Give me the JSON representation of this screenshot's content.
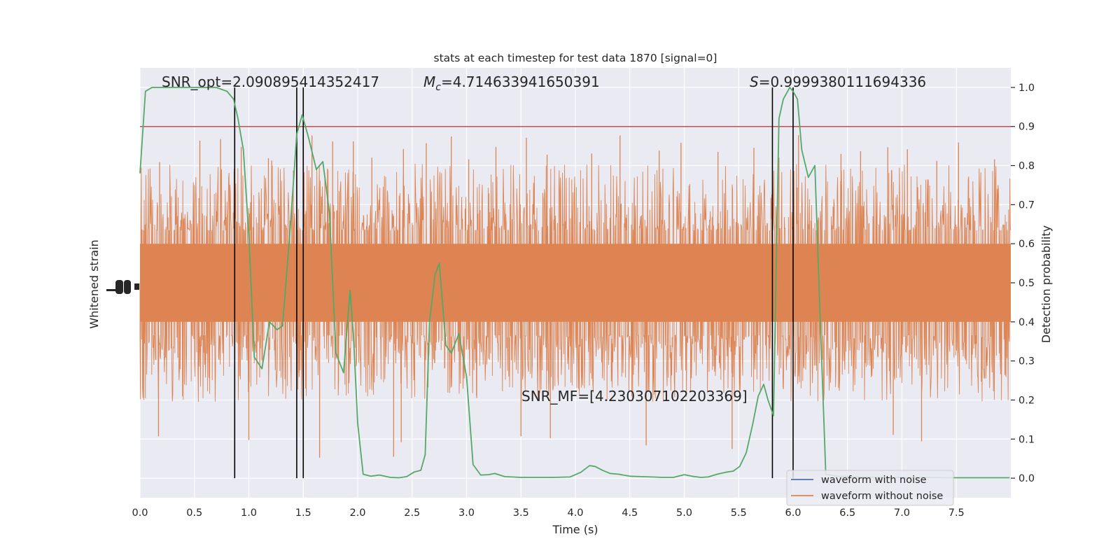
{
  "chart_data": {
    "type": "line",
    "title": "stats at each timestep for test data 1870 [signal=0]",
    "xlabel": "Time (s)",
    "ylabel_left": "Whitened strain",
    "ylabel_right": "Detection probability",
    "xlim": [
      0.0,
      8.0
    ],
    "ylim_right": [
      -0.05,
      1.05
    ],
    "x_ticks": [
      "0.0",
      "0.5",
      "1.0",
      "1.5",
      "2.0",
      "2.5",
      "3.0",
      "3.5",
      "4.0",
      "4.5",
      "5.0",
      "5.5",
      "6.0",
      "6.5",
      "7.0",
      "7.5"
    ],
    "y_ticks_right": [
      "0.0",
      "0.1",
      "0.2",
      "0.3",
      "0.4",
      "0.5",
      "0.6",
      "0.7",
      "0.8",
      "0.9",
      "1.0"
    ],
    "grid": true,
    "legend": {
      "position": "lower-right",
      "entries": [
        {
          "label": "waveform with noise",
          "color": "#4c72b0"
        },
        {
          "label": "waveform without noise",
          "color": "#dd8452"
        }
      ]
    },
    "annotations": {
      "snr_opt": "SNR_opt=2.090895414352417",
      "mc_symbol": "M",
      "mc_subscript": "c",
      "mc_value": "=4.714633941650391",
      "s_symbol": "S",
      "s_value": "=0.9999380111694336",
      "snr_mf": "SNR_MF=[4.230307102203369]"
    },
    "threshold": {
      "value": 0.9,
      "color": "#c44e52"
    },
    "vertical_lines": [
      0.87,
      1.44,
      1.5,
      5.81,
      6.0
    ],
    "series": [
      {
        "kind": "strain_trace",
        "color": "#dd8452",
        "scale_ticks_tall": [
          0.18,
          0.55,
          0.74,
          0.93,
          1.18,
          1.21,
          1.58,
          1.77,
          1.96,
          2.13,
          2.42,
          2.63,
          2.86,
          3.02,
          3.27,
          3.55,
          3.74,
          4.15,
          4.41,
          4.77,
          4.97,
          5.31,
          5.64,
          5.87,
          6.05,
          6.44,
          6.62,
          6.87,
          7.05,
          7.32,
          7.52,
          7.85
        ],
        "scale_ticks_deep": [
          0.17,
          1.0,
          1.65,
          2.33,
          2.4,
          3.5,
          3.77,
          4.65,
          5.44,
          6.92,
          7.18
        ]
      },
      {
        "kind": "detection_probability",
        "color": "#55a868",
        "x": [
          0.0,
          0.05,
          0.11,
          0.2,
          0.3,
          0.4,
          0.5,
          0.6,
          0.7,
          0.8,
          0.86,
          0.9,
          0.95,
          1.0,
          1.05,
          1.12,
          1.19,
          1.26,
          1.31,
          1.38,
          1.44,
          1.49,
          1.55,
          1.62,
          1.68,
          1.74,
          1.8,
          1.87,
          1.93,
          1.96,
          2.0,
          2.05,
          2.12,
          2.2,
          2.3,
          2.38,
          2.45,
          2.52,
          2.58,
          2.62,
          2.66,
          2.71,
          2.75,
          2.81,
          2.86,
          2.93,
          3.0,
          3.06,
          3.13,
          3.2,
          3.26,
          3.35,
          3.5,
          3.65,
          3.8,
          3.95,
          4.05,
          4.13,
          4.18,
          4.25,
          4.32,
          4.4,
          4.5,
          4.6,
          4.7,
          4.8,
          4.9,
          5.0,
          5.07,
          5.15,
          5.22,
          5.3,
          5.38,
          5.45,
          5.51,
          5.57,
          5.63,
          5.68,
          5.73,
          5.77,
          5.82,
          5.87,
          5.91,
          5.97,
          6.0,
          6.04,
          6.08,
          6.14,
          6.2,
          6.25,
          6.3,
          6.4,
          6.6,
          6.9,
          7.2,
          7.5,
          7.8,
          7.99
        ],
        "y": [
          0.78,
          0.99,
          1.0,
          1.0,
          1.0,
          1.0,
          1.0,
          1.0,
          1.0,
          0.99,
          0.97,
          0.92,
          0.84,
          0.62,
          0.31,
          0.28,
          0.4,
          0.38,
          0.39,
          0.64,
          0.88,
          0.93,
          0.87,
          0.79,
          0.81,
          0.68,
          0.32,
          0.27,
          0.48,
          0.37,
          0.14,
          0.01,
          0.005,
          0.008,
          0.002,
          0.001,
          0.004,
          0.016,
          0.02,
          0.06,
          0.4,
          0.52,
          0.55,
          0.34,
          0.32,
          0.37,
          0.26,
          0.035,
          0.008,
          0.009,
          0.012,
          0.004,
          0.002,
          0.002,
          0.002,
          0.003,
          0.015,
          0.032,
          0.03,
          0.02,
          0.012,
          0.01,
          0.005,
          0.004,
          0.003,
          0.002,
          0.002,
          0.009,
          0.005,
          0.002,
          0.003,
          0.01,
          0.015,
          0.018,
          0.03,
          0.065,
          0.14,
          0.21,
          0.24,
          0.2,
          0.16,
          0.92,
          0.97,
          1.0,
          0.99,
          0.97,
          0.84,
          0.77,
          0.8,
          0.4,
          0.01,
          0.005,
          0.003,
          0.002,
          0.002,
          0.001,
          0.001,
          0.001
        ]
      }
    ]
  }
}
